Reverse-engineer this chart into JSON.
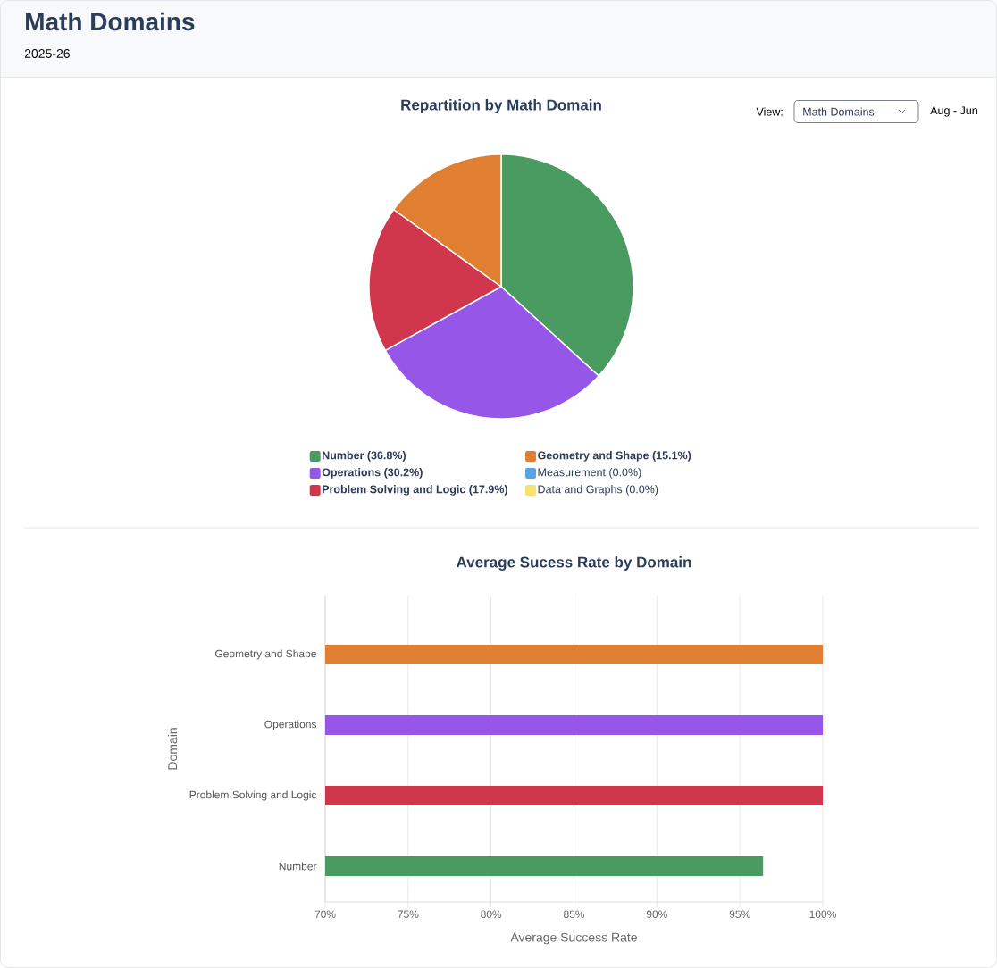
{
  "chart_data": [
    {
      "type": "other",
      "title": "Math Domains",
      "subtitle": "2025-26",
      "annotations": [
        "View:",
        "Math Domains",
        "Aug - Jun"
      ]
    },
    {
      "type": "pie",
      "title": "Repartition by Math Domain",
      "categories": [
        "Number (36.8%)",
        "Operations (30.2%)",
        "Problem Solving and Logic (17.9%)",
        "Geometry and Shape (15.1%)",
        "Measurement (0.0%)",
        "Data and Graphs (0.0%)"
      ],
      "values": [
        36.8,
        30.2,
        17.9,
        15.1,
        0.0,
        0.0
      ],
      "colors": [
        "#4a9b62",
        "#9656e8",
        "#d0364c",
        "#e07f32",
        "#57a5e5",
        "#f6e270"
      ],
      "legend": "bottom"
    },
    {
      "type": "bar",
      "title": "Average Sucess Rate by Domain",
      "orientation": "horizontal",
      "categories": [
        "Geometry and Shape",
        "Operations",
        "Problem Solving and Logic",
        "Number"
      ],
      "values": [
        100,
        100,
        100,
        96.4
      ],
      "colors": [
        "#e07f32",
        "#9656e8",
        "#d0364c",
        "#4a9b62"
      ],
      "xlim": [
        70,
        100
      ],
      "xticks": [
        {
          "value": 70,
          "label": "70%"
        },
        {
          "value": 75,
          "label": "75%"
        },
        {
          "value": 80,
          "label": "80%"
        },
        {
          "value": 85,
          "label": "85%"
        },
        {
          "value": 90,
          "label": "90%"
        },
        {
          "value": 95,
          "label": "95%"
        },
        {
          "value": 100,
          "label": "100%"
        }
      ],
      "xlabel": "Average Success Rate",
      "ylabel": "Domain",
      "grid": "x",
      "legend": false
    }
  ]
}
